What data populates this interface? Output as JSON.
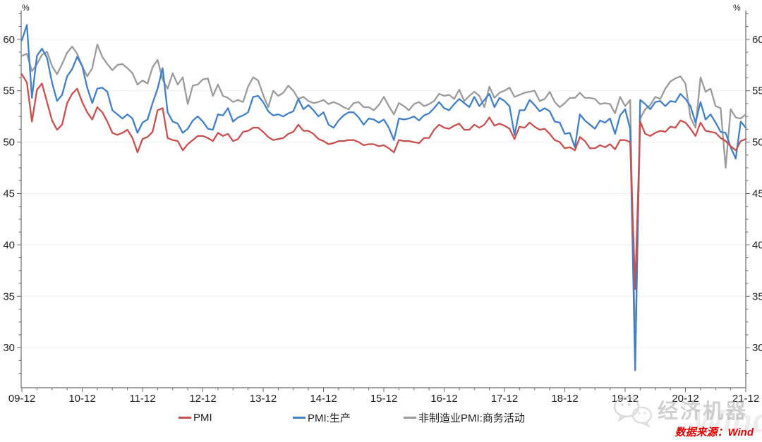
{
  "chart_data": {
    "type": "line",
    "title": "",
    "grid": true,
    "legend": {
      "position": "bottom"
    },
    "x_axis": {
      "frequency": "monthly",
      "range": [
        "2009-12",
        "2021-12"
      ],
      "tick_labels": [
        "09-12",
        "10-12",
        "11-12",
        "12-12",
        "13-12",
        "14-12",
        "15-12",
        "16-12",
        "17-12",
        "18-12",
        "19-12",
        "20-12",
        "21-12"
      ]
    },
    "y_axis": {
      "unit": "%",
      "ticks": [
        30,
        35,
        40,
        45,
        50,
        55,
        60
      ],
      "ylim": [
        26.1,
        62.8
      ],
      "mirrored_right": true
    },
    "series": [
      {
        "name": "PMI",
        "color": "#c9504e",
        "values": [
          56.6,
          55.8,
          52.0,
          55.1,
          55.7,
          53.9,
          52.1,
          51.2,
          51.7,
          53.8,
          54.7,
          55.2,
          53.9,
          52.9,
          52.2,
          53.4,
          52.9,
          52.0,
          50.9,
          50.7,
          50.9,
          51.2,
          50.4,
          49.0,
          50.3,
          50.5,
          51.0,
          53.1,
          53.3,
          50.4,
          50.2,
          50.1,
          49.2,
          49.8,
          50.2,
          50.6,
          50.6,
          50.4,
          50.1,
          50.9,
          50.6,
          50.8,
          50.1,
          50.3,
          51.0,
          51.1,
          51.4,
          51.4,
          51.0,
          50.5,
          50.2,
          50.3,
          50.4,
          50.8,
          51.0,
          51.7,
          51.1,
          51.1,
          50.8,
          50.3,
          50.1,
          49.8,
          49.9,
          50.1,
          50.1,
          50.2,
          50.2,
          50.0,
          49.7,
          49.8,
          49.8,
          49.6,
          49.7,
          49.4,
          49.0,
          50.2,
          50.1,
          50.1,
          50.0,
          49.9,
          50.4,
          50.4,
          51.2,
          51.7,
          51.4,
          51.3,
          51.6,
          51.8,
          51.2,
          51.2,
          51.7,
          51.4,
          51.7,
          52.4,
          51.6,
          51.8,
          51.6,
          51.3,
          50.3,
          51.5,
          51.4,
          51.9,
          51.5,
          51.2,
          51.3,
          50.8,
          50.2,
          50.0,
          49.4,
          49.5,
          49.2,
          50.5,
          50.1,
          49.4,
          49.4,
          49.7,
          49.5,
          49.8,
          49.3,
          50.2,
          50.2,
          50.0,
          35.7,
          52.0,
          50.8,
          50.6,
          50.9,
          51.1,
          51.0,
          51.5,
          51.4,
          52.1,
          51.9,
          51.3,
          50.6,
          51.9,
          51.1,
          51.0,
          50.9,
          50.4,
          50.1,
          49.6,
          49.2,
          50.1,
          50.3
        ]
      },
      {
        "name": "PMI:生产",
        "color": "#4180c8",
        "values": [
          59.9,
          61.4,
          54.3,
          58.4,
          59.1,
          58.2,
          55.8,
          54.0,
          54.6,
          56.4,
          57.1,
          58.3,
          57.4,
          55.3,
          53.8,
          55.2,
          55.3,
          54.9,
          53.1,
          52.7,
          52.3,
          52.7,
          52.3,
          50.9,
          51.9,
          52.2,
          53.8,
          55.2,
          57.2,
          52.9,
          52.0,
          51.8,
          50.9,
          51.3,
          52.1,
          52.5,
          52.0,
          51.3,
          51.2,
          52.7,
          52.6,
          53.3,
          52.0,
          52.4,
          52.6,
          52.9,
          54.4,
          54.5,
          53.9,
          53.0,
          52.6,
          52.7,
          52.5,
          52.8,
          53.0,
          54.2,
          53.2,
          53.6,
          53.1,
          52.5,
          52.9,
          51.7,
          51.4,
          52.1,
          52.6,
          52.9,
          52.9,
          52.4,
          51.7,
          52.3,
          52.2,
          51.9,
          52.2,
          51.4,
          50.2,
          52.3,
          52.2,
          52.3,
          52.5,
          52.1,
          52.6,
          52.8,
          53.3,
          53.9,
          53.3,
          53.1,
          53.7,
          54.2,
          53.8,
          53.4,
          54.4,
          53.5,
          54.1,
          54.7,
          53.4,
          54.3,
          54.0,
          53.5,
          50.7,
          53.1,
          53.1,
          54.1,
          53.6,
          53.0,
          53.3,
          53.0,
          52.0,
          51.9,
          50.8,
          50.9,
          49.5,
          52.7,
          52.1,
          51.7,
          51.3,
          52.1,
          51.9,
          52.3,
          50.8,
          52.6,
          53.2,
          51.3,
          27.8,
          54.1,
          53.7,
          53.2,
          53.9,
          54.0,
          53.5,
          54.0,
          53.9,
          54.7,
          54.2,
          53.5,
          51.9,
          53.9,
          52.2,
          52.7,
          51.9,
          51.0,
          50.9,
          49.5,
          48.4,
          52.0,
          51.4
        ]
      },
      {
        "name": "非制造业PMI:商务活动",
        "color": "#9b9b9b",
        "values": [
          58.4,
          58.6,
          56.9,
          57.6,
          58.5,
          58.8,
          57.4,
          56.6,
          57.6,
          58.7,
          59.3,
          58.6,
          57.4,
          56.4,
          57.2,
          59.5,
          58.3,
          57.6,
          57.0,
          57.5,
          57.6,
          57.2,
          56.7,
          55.6,
          56.0,
          55.7,
          57.3,
          58.0,
          56.1,
          55.2,
          56.7,
          55.6,
          56.3,
          53.7,
          55.5,
          55.6,
          56.1,
          56.2,
          54.5,
          55.6,
          54.5,
          54.3,
          53.9,
          54.1,
          53.9,
          55.4,
          56.3,
          56.0,
          54.6,
          53.4,
          55.0,
          54.5,
          54.8,
          55.5,
          55.0,
          54.2,
          54.4,
          54.0,
          53.8,
          53.9,
          54.1,
          53.7,
          53.9,
          53.7,
          53.4,
          53.2,
          53.8,
          53.9,
          53.4,
          53.4,
          53.1,
          53.6,
          54.4,
          53.5,
          52.7,
          53.8,
          53.5,
          53.1,
          53.7,
          53.9,
          53.5,
          53.7,
          54.0,
          54.7,
          54.5,
          54.6,
          54.2,
          55.1,
          54.0,
          54.5,
          54.9,
          54.5,
          53.4,
          55.4,
          54.3,
          54.8,
          55.0,
          55.3,
          54.4,
          54.6,
          54.8,
          54.9,
          55.0,
          54.0,
          54.2,
          54.9,
          53.9,
          53.4,
          53.8,
          54.3,
          54.3,
          54.8,
          54.3,
          54.3,
          54.2,
          53.7,
          53.8,
          53.7,
          52.8,
          54.4,
          53.5,
          54.1,
          29.6,
          52.3,
          53.2,
          53.6,
          54.4,
          54.2,
          55.2,
          55.9,
          56.2,
          56.4,
          55.7,
          52.4,
          51.4,
          56.3,
          54.9,
          55.2,
          53.5,
          53.3,
          47.5,
          53.2,
          52.4,
          52.3,
          52.7
        ]
      }
    ]
  },
  "footer": {
    "source_label": "数据来源：Wind"
  },
  "watermark": {
    "brand_text": "经济机器",
    "wind_text": "Wind",
    "logo": "wechat-icon"
  }
}
